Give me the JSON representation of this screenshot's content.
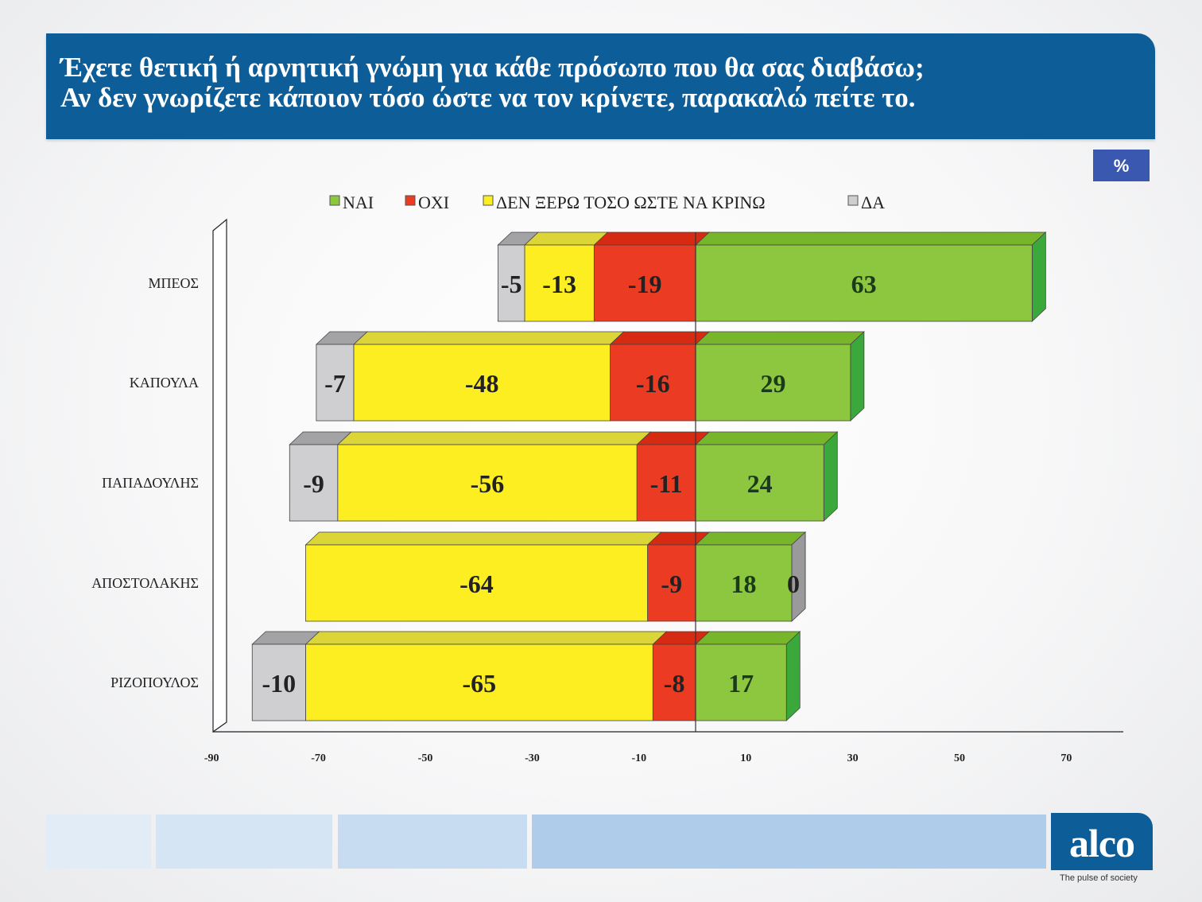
{
  "title": {
    "line1": "Έχετε θετική ή αρνητική γνώμη για κάθε πρόσωπο που θα σας διαβάσω;",
    "line2": "Αν δεν γνωρίζετε κάποιον τόσο ώστε να τον κρίνετε, παρακαλώ πείτε το."
  },
  "unit_badge": "%",
  "brand": {
    "logo": "alco",
    "tagline": "The pulse of society"
  },
  "colors": {
    "nai": "#8dc63f",
    "oxi": "#ec3b23",
    "den_xero": "#fcee21",
    "da": "#cfcfd1",
    "title_bg": "#0d5e98",
    "badge_bg": "#3b58b0"
  },
  "chart_data": {
    "type": "bar",
    "orientation": "horizontal",
    "stacked": true,
    "categories": [
      "ΜΠΕΟΣ",
      "ΚΑΠΟΥΛΑ",
      "ΠΑΠΑΔΟΥΛΗΣ",
      "ΑΠΟΣΤΟΛΑΚΗΣ",
      "ΡΙΖΟΠΟΥΛΟΣ"
    ],
    "series": [
      {
        "name": "ΝΑΙ",
        "values": [
          63,
          29,
          24,
          18,
          17
        ],
        "labels": [
          "63",
          "29",
          "24",
          "18",
          "17"
        ]
      },
      {
        "name": "ΟΧΙ",
        "values": [
          -19,
          -16,
          -11,
          -9,
          -8
        ],
        "labels": [
          "-19",
          "-16",
          "-11",
          "-9",
          "-8"
        ]
      },
      {
        "name": "ΔΕΝ ΞΕΡΩ ΤΟΣΟ ΩΣΤΕ ΝΑ ΚΡΙΝΩ",
        "values": [
          -13,
          -48,
          -56,
          -64,
          -65
        ],
        "labels": [
          "-13",
          "-48",
          "-56",
          "-64",
          "-65"
        ]
      },
      {
        "name": "ΔΑ",
        "values": [
          -5,
          -7,
          -9,
          0,
          -10
        ],
        "labels": [
          "-5",
          "-7",
          "-9",
          "0",
          "-10"
        ]
      }
    ],
    "xlim": [
      -90,
      80
    ],
    "xticks": [
      -90,
      -70,
      -50,
      -30,
      -10,
      10,
      30,
      50,
      70
    ],
    "legend_position": "top",
    "grid": false
  }
}
